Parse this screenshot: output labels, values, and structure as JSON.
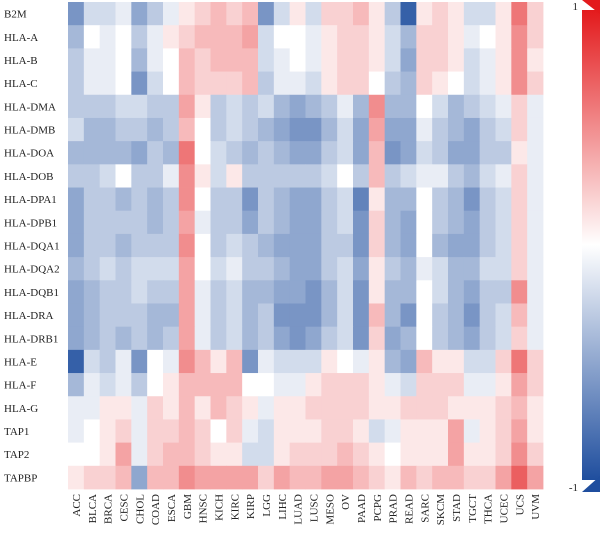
{
  "chart_data": {
    "type": "heatmap",
    "rows": [
      "B2M",
      "HLA-A",
      "HLA-B",
      "HLA-C",
      "HLA-DMA",
      "HLA-DMB",
      "HLA-DOA",
      "HLA-DOB",
      "HLA-DPA1",
      "HLA-DPB1",
      "HLA-DQA1",
      "HLA-DQA2",
      "HLA-DQB1",
      "HLA-DRA",
      "HLA-DRB1",
      "HLA-E",
      "HLA-F",
      "HLA-G",
      "TAP1",
      "TAP2",
      "TAPBP"
    ],
    "columns": [
      "ACC",
      "BLCA",
      "BRCA",
      "CESC",
      "CHOL",
      "COAD",
      "ESCA",
      "GBM",
      "HNSC",
      "KICH",
      "KIRC",
      "KIRP",
      "LGG",
      "LIHC",
      "LUAD",
      "LUSC",
      "MESO",
      "OV",
      "PAAD",
      "PCPG",
      "PRAD",
      "READ",
      "SARC",
      "SKCM",
      "STAD",
      "TGCT",
      "THCA",
      "UCEC",
      "UCS",
      "UVM"
    ],
    "values": [
      [
        -0.6,
        -0.2,
        -0.2,
        -0.1,
        -0.5,
        -0.3,
        -0.1,
        0.1,
        0.2,
        0.3,
        0.2,
        0.3,
        -0.6,
        -0.2,
        0.1,
        -0.2,
        0.2,
        0.2,
        0.3,
        0.1,
        -0.3,
        -0.9,
        0.1,
        0.2,
        0.1,
        -0.2,
        -0.2,
        0.1,
        0.6,
        0.2
      ],
      [
        -0.4,
        0.0,
        -0.1,
        0.0,
        -0.3,
        -0.1,
        0.1,
        0.2,
        0.3,
        0.3,
        0.3,
        0.4,
        -0.2,
        0.0,
        0.0,
        -0.1,
        0.1,
        0.2,
        0.2,
        0.1,
        -0.2,
        -0.4,
        0.2,
        0.2,
        0.1,
        -0.1,
        0.0,
        0.1,
        0.5,
        0.2
      ],
      [
        -0.3,
        -0.1,
        -0.1,
        0.0,
        -0.4,
        -0.1,
        0.0,
        0.3,
        0.2,
        0.3,
        0.3,
        0.3,
        -0.2,
        -0.1,
        0.0,
        -0.1,
        0.1,
        0.2,
        0.2,
        0.1,
        -0.2,
        -0.5,
        0.2,
        0.2,
        0.1,
        -0.2,
        -0.1,
        0.1,
        0.5,
        0.1
      ],
      [
        -0.3,
        -0.1,
        -0.1,
        0.0,
        -0.6,
        -0.2,
        0.0,
        0.3,
        0.2,
        0.2,
        0.2,
        0.3,
        -0.3,
        -0.1,
        -0.1,
        -0.2,
        0.1,
        0.2,
        0.2,
        0.0,
        -0.3,
        -0.4,
        0.2,
        0.1,
        0.0,
        -0.2,
        -0.1,
        0.1,
        0.5,
        0.2
      ],
      [
        -0.3,
        -0.3,
        -0.3,
        -0.2,
        -0.2,
        -0.3,
        -0.3,
        0.4,
        0.1,
        -0.3,
        -0.2,
        -0.3,
        -0.2,
        -0.4,
        -0.5,
        -0.4,
        -0.3,
        -0.1,
        -0.4,
        0.5,
        -0.4,
        -0.4,
        0.0,
        -0.2,
        -0.4,
        -0.3,
        -0.2,
        -0.1,
        0.2,
        -0.1
      ],
      [
        -0.2,
        -0.4,
        -0.4,
        -0.3,
        -0.3,
        -0.4,
        -0.3,
        0.3,
        0.0,
        -0.3,
        -0.2,
        -0.3,
        -0.4,
        -0.5,
        -0.6,
        -0.6,
        -0.4,
        -0.2,
        -0.5,
        0.4,
        -0.5,
        -0.5,
        -0.1,
        -0.3,
        -0.4,
        -0.5,
        -0.3,
        -0.2,
        0.2,
        -0.1
      ],
      [
        -0.4,
        -0.4,
        -0.4,
        -0.4,
        -0.5,
        -0.3,
        -0.4,
        0.6,
        0.0,
        -0.2,
        -0.3,
        -0.4,
        -0.3,
        -0.4,
        -0.5,
        -0.5,
        -0.3,
        -0.2,
        -0.5,
        0.3,
        -0.6,
        -0.5,
        -0.2,
        -0.3,
        -0.5,
        -0.5,
        -0.3,
        -0.3,
        0.1,
        -0.1
      ],
      [
        -0.3,
        -0.3,
        -0.2,
        0.0,
        -0.3,
        -0.3,
        -0.1,
        0.5,
        0.1,
        -0.2,
        0.1,
        -0.3,
        -0.3,
        -0.3,
        -0.3,
        -0.3,
        -0.2,
        0.0,
        -0.3,
        0.3,
        -0.3,
        -0.2,
        -0.1,
        -0.1,
        -0.3,
        -0.4,
        -0.2,
        -0.1,
        0.2,
        -0.1
      ],
      [
        -0.5,
        -0.3,
        -0.3,
        -0.4,
        -0.3,
        -0.4,
        -0.3,
        0.5,
        0.0,
        -0.3,
        -0.3,
        -0.6,
        -0.3,
        -0.4,
        -0.5,
        -0.5,
        -0.3,
        -0.2,
        -0.7,
        0.1,
        -0.4,
        -0.4,
        0.0,
        -0.3,
        -0.4,
        -0.6,
        -0.3,
        -0.2,
        0.2,
        -0.1
      ],
      [
        -0.5,
        -0.3,
        -0.3,
        -0.3,
        -0.3,
        -0.4,
        -0.3,
        0.4,
        -0.1,
        -0.3,
        -0.3,
        -0.5,
        -0.3,
        -0.4,
        -0.5,
        -0.5,
        -0.3,
        -0.2,
        -0.6,
        0.2,
        -0.4,
        -0.5,
        0.0,
        -0.3,
        -0.4,
        -0.5,
        -0.3,
        -0.2,
        0.2,
        -0.1
      ],
      [
        -0.5,
        -0.3,
        -0.3,
        -0.4,
        -0.3,
        -0.3,
        -0.3,
        0.5,
        0.0,
        -0.3,
        -0.2,
        -0.3,
        -0.4,
        -0.5,
        -0.5,
        -0.5,
        -0.3,
        -0.3,
        -0.6,
        0.2,
        -0.4,
        -0.5,
        0.0,
        -0.4,
        -0.5,
        -0.5,
        -0.3,
        -0.2,
        0.2,
        -0.1
      ],
      [
        -0.4,
        -0.3,
        -0.2,
        -0.3,
        -0.2,
        -0.2,
        -0.2,
        0.4,
        0.0,
        -0.2,
        -0.1,
        -0.3,
        -0.3,
        -0.4,
        -0.5,
        -0.5,
        -0.3,
        -0.2,
        -0.5,
        0.1,
        -0.3,
        -0.4,
        -0.1,
        -0.2,
        -0.4,
        -0.4,
        -0.2,
        -0.2,
        0.2,
        -0.1
      ],
      [
        -0.5,
        -0.4,
        -0.3,
        -0.3,
        -0.2,
        -0.3,
        -0.3,
        0.4,
        -0.1,
        -0.3,
        -0.2,
        -0.4,
        -0.4,
        -0.5,
        -0.5,
        -0.6,
        -0.4,
        -0.2,
        -0.6,
        0.1,
        -0.4,
        -0.4,
        0.0,
        -0.2,
        -0.4,
        -0.5,
        -0.3,
        -0.3,
        0.5,
        -0.1
      ],
      [
        -0.5,
        -0.4,
        -0.3,
        -0.3,
        -0.3,
        -0.4,
        -0.4,
        0.4,
        -0.1,
        -0.3,
        -0.2,
        -0.4,
        -0.3,
        -0.6,
        -0.6,
        -0.6,
        -0.4,
        -0.2,
        -0.6,
        0.3,
        -0.4,
        -0.6,
        0.0,
        -0.3,
        -0.4,
        -0.6,
        -0.3,
        -0.2,
        0.3,
        -0.1
      ],
      [
        -0.5,
        -0.4,
        -0.3,
        -0.4,
        -0.3,
        -0.4,
        -0.3,
        0.4,
        -0.1,
        -0.3,
        -0.2,
        -0.4,
        -0.3,
        -0.5,
        -0.6,
        -0.5,
        -0.3,
        -0.2,
        -0.6,
        0.2,
        -0.5,
        -0.4,
        0.0,
        -0.3,
        -0.4,
        -0.5,
        -0.3,
        -0.2,
        0.2,
        -0.1
      ],
      [
        -0.9,
        -0.2,
        -0.3,
        -0.1,
        -0.6,
        0.0,
        -0.1,
        0.5,
        0.3,
        0.1,
        0.3,
        -0.6,
        -0.1,
        -0.2,
        -0.2,
        -0.2,
        0.1,
        0.0,
        -0.1,
        0.1,
        -0.4,
        -0.5,
        0.3,
        0.1,
        0.1,
        -0.2,
        -0.2,
        0.2,
        0.6,
        0.2
      ],
      [
        -0.4,
        -0.1,
        -0.2,
        -0.1,
        -0.3,
        0.0,
        0.1,
        0.3,
        0.3,
        0.3,
        0.3,
        0.0,
        0.0,
        -0.1,
        -0.1,
        0.1,
        0.2,
        0.2,
        0.2,
        0.1,
        -0.1,
        -0.2,
        0.2,
        0.2,
        0.2,
        -0.1,
        -0.1,
        0.1,
        0.4,
        0.2
      ],
      [
        -0.1,
        -0.1,
        0.1,
        0.1,
        -0.1,
        0.2,
        0.1,
        0.3,
        0.1,
        0.3,
        0.2,
        0.1,
        -0.1,
        0.1,
        0.1,
        0.2,
        0.2,
        0.2,
        0.2,
        0.1,
        0.1,
        0.2,
        0.2,
        0.2,
        0.1,
        0.1,
        0.1,
        0.2,
        0.3,
        0.1
      ],
      [
        -0.1,
        0.0,
        0.1,
        0.2,
        -0.1,
        0.2,
        0.2,
        0.3,
        0.2,
        0.0,
        0.2,
        -0.1,
        -0.2,
        0.1,
        0.1,
        0.1,
        0.2,
        0.2,
        0.1,
        -0.2,
        -0.1,
        0.1,
        0.1,
        0.1,
        0.4,
        -0.1,
        0.1,
        0.2,
        0.4,
        0.1
      ],
      [
        0.0,
        0.0,
        0.1,
        0.4,
        -0.1,
        0.2,
        0.3,
        0.3,
        0.2,
        0.1,
        0.1,
        -0.2,
        -0.2,
        0.1,
        0.2,
        0.2,
        0.2,
        0.3,
        0.2,
        0.1,
        0.0,
        0.1,
        0.1,
        0.1,
        0.4,
        0.1,
        0.1,
        0.2,
        0.5,
        0.2
      ],
      [
        0.1,
        0.2,
        0.2,
        0.3,
        -0.5,
        0.3,
        0.3,
        0.5,
        0.4,
        0.4,
        0.4,
        0.4,
        0.2,
        0.4,
        0.3,
        0.3,
        0.4,
        0.4,
        0.3,
        0.2,
        0.1,
        0.3,
        0.2,
        0.3,
        0.3,
        0.2,
        0.2,
        0.4,
        0.7,
        0.4
      ]
    ],
    "colorscale": {
      "min": -1,
      "max": 1,
      "low": "#1f4e9e",
      "mid": "#ffffff",
      "high": "#e31a1c"
    },
    "colorbar_ticks": [
      "1",
      "-1"
    ],
    "title": "",
    "xlabel": "",
    "ylabel": ""
  }
}
